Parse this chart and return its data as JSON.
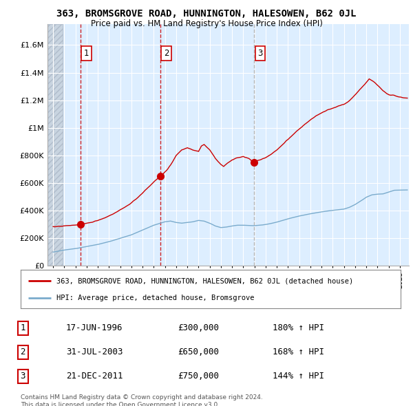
{
  "title": "363, BROMSGROVE ROAD, HUNNINGTON, HALESOWEN, B62 0JL",
  "subtitle": "Price paid vs. HM Land Registry's House Price Index (HPI)",
  "legend_line1": "363, BROMSGROVE ROAD, HUNNINGTON, HALESOWEN, B62 0JL (detached house)",
  "legend_line2": "HPI: Average price, detached house, Bromsgrove",
  "footer": "Contains HM Land Registry data © Crown copyright and database right 2024.\nThis data is licensed under the Open Government Licence v3.0.",
  "sale_color": "#cc0000",
  "hpi_color": "#7aabcc",
  "background_color": "#ffffff",
  "plot_bg_color": "#ddeeff",
  "grid_color": "#ffffff",
  "ylim": [
    0,
    1750000
  ],
  "yticks": [
    0,
    200000,
    400000,
    600000,
    800000,
    1000000,
    1200000,
    1400000,
    1600000
  ],
  "xlim_start": 1993.5,
  "xlim_end": 2025.8,
  "sales": [
    {
      "num": 1,
      "year": 1996.46,
      "price": 300000,
      "date": "17-JUN-1996",
      "pct": "180%",
      "arrow": "↑",
      "vline_color": "#cc0000"
    },
    {
      "num": 2,
      "year": 2003.58,
      "price": 650000,
      "date": "31-JUL-2003",
      "pct": "168%",
      "arrow": "↑",
      "vline_color": "#cc0000"
    },
    {
      "num": 3,
      "year": 2011.97,
      "price": 750000,
      "date": "21-DEC-2011",
      "pct": "144%",
      "arrow": "↑",
      "vline_color": "#aaaaaa"
    }
  ]
}
